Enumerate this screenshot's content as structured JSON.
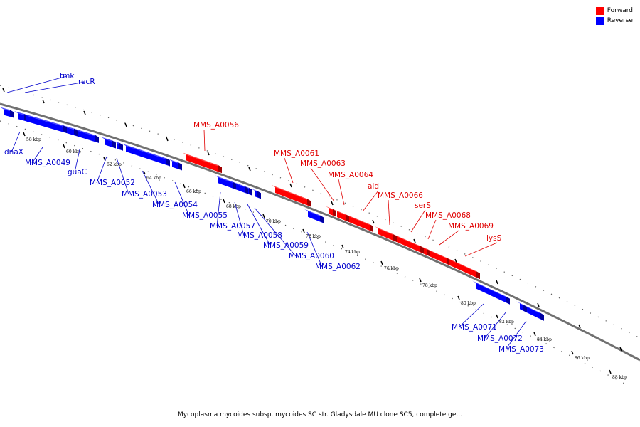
{
  "legend": {
    "forward_label": "Forward",
    "reverse_label": "Reverse",
    "forward_color": "#ff0000",
    "reverse_color": "#0000ff"
  },
  "caption": "Mycoplasma mycoides subsp. mycoides SC str. Gladysdale MU clone SC5, complete ge...",
  "ruler": {
    "unit": "kbp",
    "ticks": [
      "58 kbp",
      "60 kbp",
      "62 kbp",
      "64 kbp",
      "66 kbp",
      "68 kbp",
      "70 kbp",
      "72 kbp",
      "74 kbp",
      "76 kbp",
      "78 kbp",
      "80 kbp",
      "82 kbp",
      "84 kbp",
      "86 kbp",
      "88 kbp"
    ]
  },
  "genes": {
    "forward": [
      "MMS_A0056",
      "MMS_A0061",
      "MMS_A0063",
      "MMS_A0064",
      "ald",
      "MMS_A0066",
      "serS",
      "MMS_A0068",
      "MMS_A0069",
      "lysS"
    ],
    "reverse": [
      "tmk",
      "recR",
      "dnaX",
      "MMS_A0049",
      "guaC",
      "MMS_A0052",
      "MMS_A0053",
      "MMS_A0054",
      "MMS_A0055",
      "MMS_A0057",
      "MMS_A0058",
      "MMS_A0059",
      "MMS_A0060",
      "MMS_A0062",
      "MMS_A0071",
      "MMS_A0072",
      "MMS_A0073"
    ]
  }
}
